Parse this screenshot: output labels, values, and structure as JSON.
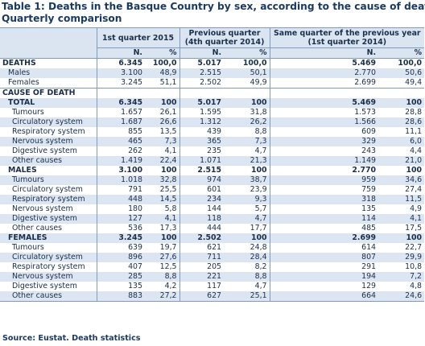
{
  "title_line1": "Table 1: Deaths in the Basque Country by sex, according to the cause of death.",
  "title_line2": "Quarterly comparison",
  "headers": {
    "q1": "1st quarter 2015",
    "prev_l1": "Previous quarter",
    "prev_l2": "(4th quarter 2014)",
    "same_l1": "Same quarter of the previous year",
    "same_l2": "(1st quarter 2014)",
    "n": "N.",
    "pct": "%"
  },
  "deaths_section": {
    "label": "DEATHS",
    "rows": [
      {
        "label": "DEATHS",
        "v": [
          "6.345",
          "100,0",
          "5.017",
          "100,0",
          "5.469",
          "100,0"
        ]
      },
      {
        "label": "Males",
        "v": [
          "3.100",
          "48,9",
          "2.515",
          "50,1",
          "2.770",
          "50,6"
        ]
      },
      {
        "label": "Females",
        "v": [
          "3.245",
          "51,1",
          "2.502",
          "49,9",
          "2.699",
          "49,4"
        ]
      }
    ]
  },
  "cause_heading": "CAUSE OF DEATH",
  "cause_rows": [
    {
      "label": "TOTAL",
      "v": [
        "6.345",
        "100",
        "5.017",
        "100",
        "5.469",
        "100"
      ]
    },
    {
      "label": "Tumours",
      "v": [
        "1.657",
        "26,1",
        "1.595",
        "31,8",
        "1.573",
        "28,8"
      ]
    },
    {
      "label": "Circulatory system",
      "v": [
        "1.687",
        "26,6",
        "1.312",
        "26,2",
        "1.566",
        "28,6"
      ]
    },
    {
      "label": "Respiratory system",
      "v": [
        "855",
        "13,5",
        "439",
        "8,8",
        "609",
        "11,1"
      ]
    },
    {
      "label": "Nervous system",
      "v": [
        "465",
        "7,3",
        "365",
        "7,3",
        "329",
        "6,0"
      ]
    },
    {
      "label": "Digestive system",
      "v": [
        "262",
        "4,1",
        "235",
        "4,7",
        "243",
        "4,4"
      ]
    },
    {
      "label": "Other causes",
      "v": [
        "1.419",
        "22,4",
        "1.071",
        "21,3",
        "1.149",
        "21,0"
      ]
    },
    {
      "label": "MALES",
      "v": [
        "3.100",
        "100",
        "2.515",
        "100",
        "2.770",
        "100"
      ]
    },
    {
      "label": "Tumours",
      "v": [
        "1.018",
        "32,8",
        "974",
        "38,7",
        "959",
        "34,6"
      ]
    },
    {
      "label": "Circulatory system",
      "v": [
        "791",
        "25,5",
        "601",
        "23,9",
        "759",
        "27,4"
      ]
    },
    {
      "label": "Respiratory system",
      "v": [
        "448",
        "14,5",
        "234",
        "9,3",
        "318",
        "11,5"
      ]
    },
    {
      "label": "Nervous system",
      "v": [
        "180",
        "5,8",
        "144",
        "5,7",
        "135",
        "4,9"
      ]
    },
    {
      "label": "Digestive system",
      "v": [
        "127",
        "4,1",
        "118",
        "4,7",
        "114",
        "4,1"
      ]
    },
    {
      "label": "Other causes",
      "v": [
        "536",
        "17,3",
        "444",
        "17,7",
        "485",
        "17,5"
      ]
    },
    {
      "label": "FEMALES",
      "v": [
        "3.245",
        "100",
        "2.502",
        "100",
        "2.699",
        "100"
      ]
    },
    {
      "label": "Tumours",
      "v": [
        "639",
        "19,7",
        "621",
        "24,8",
        "614",
        "22,7"
      ]
    },
    {
      "label": "Circulatory system",
      "v": [
        "896",
        "27,6",
        "711",
        "28,4",
        "807",
        "29,9"
      ]
    },
    {
      "label": "Respiratory system",
      "v": [
        "407",
        "12,5",
        "205",
        "8,2",
        "291",
        "10,8"
      ]
    },
    {
      "label": "Nervous system",
      "v": [
        "285",
        "8,8",
        "221",
        "8,8",
        "194",
        "7,2"
      ]
    },
    {
      "label": "Digestive system",
      "v": [
        "135",
        "4,2",
        "117",
        "4,7",
        "129",
        "4,8"
      ]
    },
    {
      "label": "Other causes",
      "v": [
        "883",
        "27,2",
        "627",
        "25,1",
        "664",
        "24,6"
      ]
    }
  ],
  "source": "Source: Eustat. Death statistics"
}
